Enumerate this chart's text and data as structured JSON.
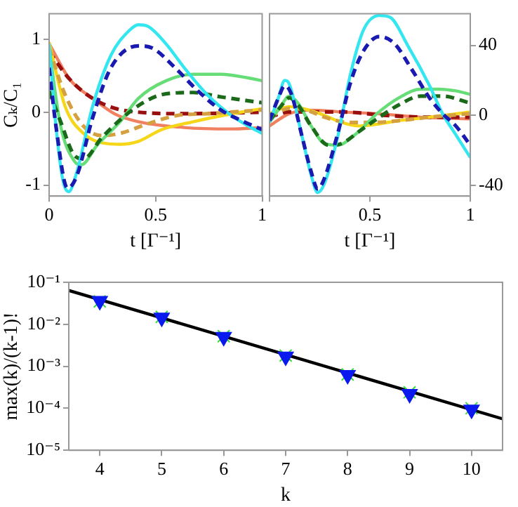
{
  "chart_data": [
    {
      "type": "line",
      "xlabel": "t [Γ⁻¹]",
      "ylabel": "Cₖ/C₁",
      "xlim": [
        0,
        1
      ],
      "xticks": [
        0,
        0.5,
        1
      ],
      "ylim": [
        -1.15,
        1.35
      ],
      "yticks": [
        -1,
        0,
        1
      ],
      "grid": false,
      "legend": false,
      "series": [
        {
          "color": "#f08060",
          "line_style": "solid",
          "x": [
            0,
            0.097,
            0.204,
            0.312,
            0.419,
            0.634,
            0.849,
            1
          ],
          "values": [
            0.94,
            0.45,
            0.19,
            -0.03,
            -0.13,
            -0.21,
            -0.23,
            -0.21
          ]
        },
        {
          "color": "#990f0f",
          "line_style": "dashed",
          "x": [
            0,
            0.097,
            0.204,
            0.312,
            0.419,
            0.634,
            1
          ],
          "values": [
            0.83,
            0.45,
            0.19,
            0.05,
            0,
            -0.02,
            0
          ]
        },
        {
          "color": "#f5d619",
          "line_style": "solid",
          "x": [
            0,
            0.075,
            0.161,
            0.269,
            0.333,
            0.419,
            0.527,
            0.677,
            0.806,
            1
          ],
          "values": [
            0.96,
            0.08,
            -0.29,
            -0.43,
            -0.44,
            -0.4,
            -0.24,
            -0.13,
            -0.05,
            0.05
          ]
        },
        {
          "color": "#d4a040",
          "line_style": "dashed",
          "x": [
            0,
            0.075,
            0.161,
            0.247,
            0.333,
            0.462,
            0.591,
            0.742,
            1
          ],
          "values": [
            0.88,
            0.24,
            -0.19,
            -0.32,
            -0.29,
            -0.16,
            -0.05,
            -0.02,
            0.03
          ]
        },
        {
          "color": "#66dd77",
          "line_style": "solid",
          "x": [
            0,
            0.054,
            0.118,
            0.151,
            0.226,
            0.333,
            0.419,
            0.548,
            0.677,
            0.806,
            0.935,
            1
          ],
          "values": [
            0.88,
            -0.19,
            -0.67,
            -0.72,
            -0.45,
            -0.13,
            0.19,
            0.43,
            0.52,
            0.52,
            0.47,
            0.43
          ]
        },
        {
          "color": "#1a6a1a",
          "line_style": "dashed",
          "x": [
            0,
            0.054,
            0.118,
            0.161,
            0.247,
            0.355,
            0.441,
            0.527,
            0.677,
            0.806,
            1
          ],
          "values": [
            0.29,
            -0.13,
            -0.59,
            -0.64,
            -0.35,
            -0.05,
            0.13,
            0.24,
            0.27,
            0.21,
            0.13
          ]
        },
        {
          "color": "#33e6f0",
          "line_style": "solid",
          "x": [
            0,
            0.032,
            0.065,
            0.092,
            0.129,
            0.204,
            0.29,
            0.376,
            0.419,
            0.462,
            0.548,
            0.634,
            0.742,
            0.849,
            0.935,
            1
          ],
          "values": [
            0.94,
            -0.19,
            -0.94,
            -1.09,
            -0.83,
            0.08,
            0.78,
            1.12,
            1.2,
            1.18,
            0.94,
            0.61,
            0.24,
            -0.03,
            -0.19,
            -0.29
          ]
        },
        {
          "color": "#1a1ab0",
          "line_style": "dashed",
          "x": [
            0,
            0.032,
            0.086,
            0.129,
            0.204,
            0.29,
            0.419,
            0.484,
            0.591,
            0.699,
            0.806,
            0.914,
            1
          ],
          "values": [
            0.61,
            -0.19,
            -1.04,
            -0.88,
            -0.08,
            0.61,
            0.91,
            0.88,
            0.61,
            0.29,
            0.03,
            -0.13,
            -0.24
          ]
        }
      ]
    },
    {
      "type": "line",
      "xlabel": "t [Γ⁻¹]",
      "xlim": [
        0,
        1
      ],
      "xticks": [
        {
          "value": 0,
          "label": null
        },
        0.5,
        1
      ],
      "y2lim": [
        -46,
        58
      ],
      "y2ticks": [
        -40,
        0,
        40
      ],
      "grid": false,
      "legend": false,
      "series": [
        {
          "color": "#f08060",
          "line_style": "solid",
          "axis": "y2",
          "x": [
            0,
            0.098,
            0.207,
            0.36,
            0.535,
            0.753,
            1
          ],
          "values": [
            -6,
            1,
            3,
            2,
            1,
            -1,
            -2
          ]
        },
        {
          "color": "#990f0f",
          "line_style": "dashed",
          "axis": "y2",
          "x": [
            0,
            0.098,
            0.207,
            0.36,
            0.579,
            0.797,
            1
          ],
          "values": [
            -1,
            2,
            2,
            2,
            0,
            -1,
            -1
          ]
        },
        {
          "color": "#f5d619",
          "line_style": "solid",
          "axis": "y2",
          "x": [
            0,
            0.098,
            0.164,
            0.251,
            0.36,
            0.448,
            0.535,
            0.644,
            0.797,
            1
          ],
          "values": [
            1,
            5,
            4,
            1,
            -4,
            -6,
            -5,
            -3,
            -1,
            2
          ]
        },
        {
          "color": "#d4a040",
          "line_style": "dashed",
          "axis": "y2",
          "x": [
            0,
            0.098,
            0.186,
            0.273,
            0.404,
            0.513,
            0.644,
            0.797,
            1
          ],
          "values": [
            -1,
            4,
            3,
            -1,
            -4,
            -4,
            -3,
            -1,
            1
          ]
        },
        {
          "color": "#66dd77",
          "line_style": "solid",
          "axis": "y2",
          "x": [
            0,
            0.055,
            0.098,
            0.142,
            0.207,
            0.273,
            0.338,
            0.426,
            0.535,
            0.644,
            0.753,
            0.841,
            0.928,
            1
          ],
          "values": [
            -4,
            5,
            11,
            7,
            -6,
            -16,
            -17,
            -11,
            1,
            10,
            15,
            15,
            14,
            12
          ]
        },
        {
          "color": "#1a6a1a",
          "line_style": "dashed",
          "axis": "y2",
          "x": [
            0,
            0.055,
            0.098,
            0.142,
            0.207,
            0.295,
            0.36,
            0.448,
            0.535,
            0.644,
            0.753,
            0.862,
            1
          ],
          "values": [
            -3,
            5,
            10,
            6,
            -6,
            -17,
            -16,
            -9,
            -2,
            6,
            11,
            11,
            7
          ]
        },
        {
          "color": "#33e6f0",
          "line_style": "solid",
          "axis": "y2",
          "x": [
            0,
            0.044,
            0.076,
            0.098,
            0.164,
            0.207,
            0.24,
            0.273,
            0.338,
            0.404,
            0.469,
            0.546,
            0.6,
            0.688,
            0.797,
            0.862,
            0.928,
            1
          ],
          "values": [
            -4,
            10,
            20,
            18,
            -13,
            -34,
            -44,
            -39,
            -13,
            24,
            49,
            57,
            56,
            40,
            17,
            1,
            -11,
            -24
          ]
        },
        {
          "color": "#1a1ab0",
          "line_style": "dashed",
          "axis": "y2",
          "x": [
            0,
            0.044,
            0.076,
            0.109,
            0.164,
            0.207,
            0.24,
            0.273,
            0.338,
            0.404,
            0.469,
            0.546,
            0.622,
            0.71,
            0.797,
            0.862,
            0.928,
            1
          ],
          "values": [
            -3,
            10,
            17,
            12,
            -13,
            -32,
            -42,
            -36,
            -11,
            19,
            37,
            45,
            41,
            26,
            10,
            1,
            -6,
            -17
          ]
        }
      ]
    },
    {
      "type": "scatter",
      "xlabel": "k",
      "ylabel": "max(k)/(k-1)!",
      "log": "y",
      "xlim": [
        3.5,
        10.5
      ],
      "xticks": [
        4,
        5,
        6,
        7,
        8,
        9,
        10
      ],
      "ylim": [
        1e-05,
        0.1
      ],
      "yticks": [
        {
          "value": 1e-05,
          "label": "10⁻⁵"
        },
        {
          "value": 0.0001,
          "label": "10⁻⁴"
        },
        {
          "value": 0.001,
          "label": "10⁻³"
        },
        {
          "value": 0.01,
          "label": "10⁻²"
        },
        {
          "value": 0.1,
          "label": "10⁻¹"
        }
      ],
      "grid": false,
      "legend": false,
      "series": [
        {
          "type": "line",
          "color": "#000000",
          "line_style": "solid",
          "marker": "none",
          "x": [
            3.5,
            10.5
          ],
          "values": [
            0.064,
            5.6e-05
          ]
        },
        {
          "color": "#33dd33",
          "marker": "cross",
          "x": [
            4,
            5,
            6,
            7,
            8,
            9,
            10
          ],
          "values": [
            0.035,
            0.015,
            0.0052,
            0.0018,
            0.00064,
            0.00024,
            0.0001
          ]
        },
        {
          "color": "#0a1aee",
          "marker": "triangle",
          "x": [
            4,
            5,
            6,
            7,
            8,
            9,
            10
          ],
          "values": [
            0.036,
            0.0145,
            0.005,
            0.0017,
            0.00062,
            0.00022,
            9.3e-05
          ]
        }
      ]
    }
  ]
}
